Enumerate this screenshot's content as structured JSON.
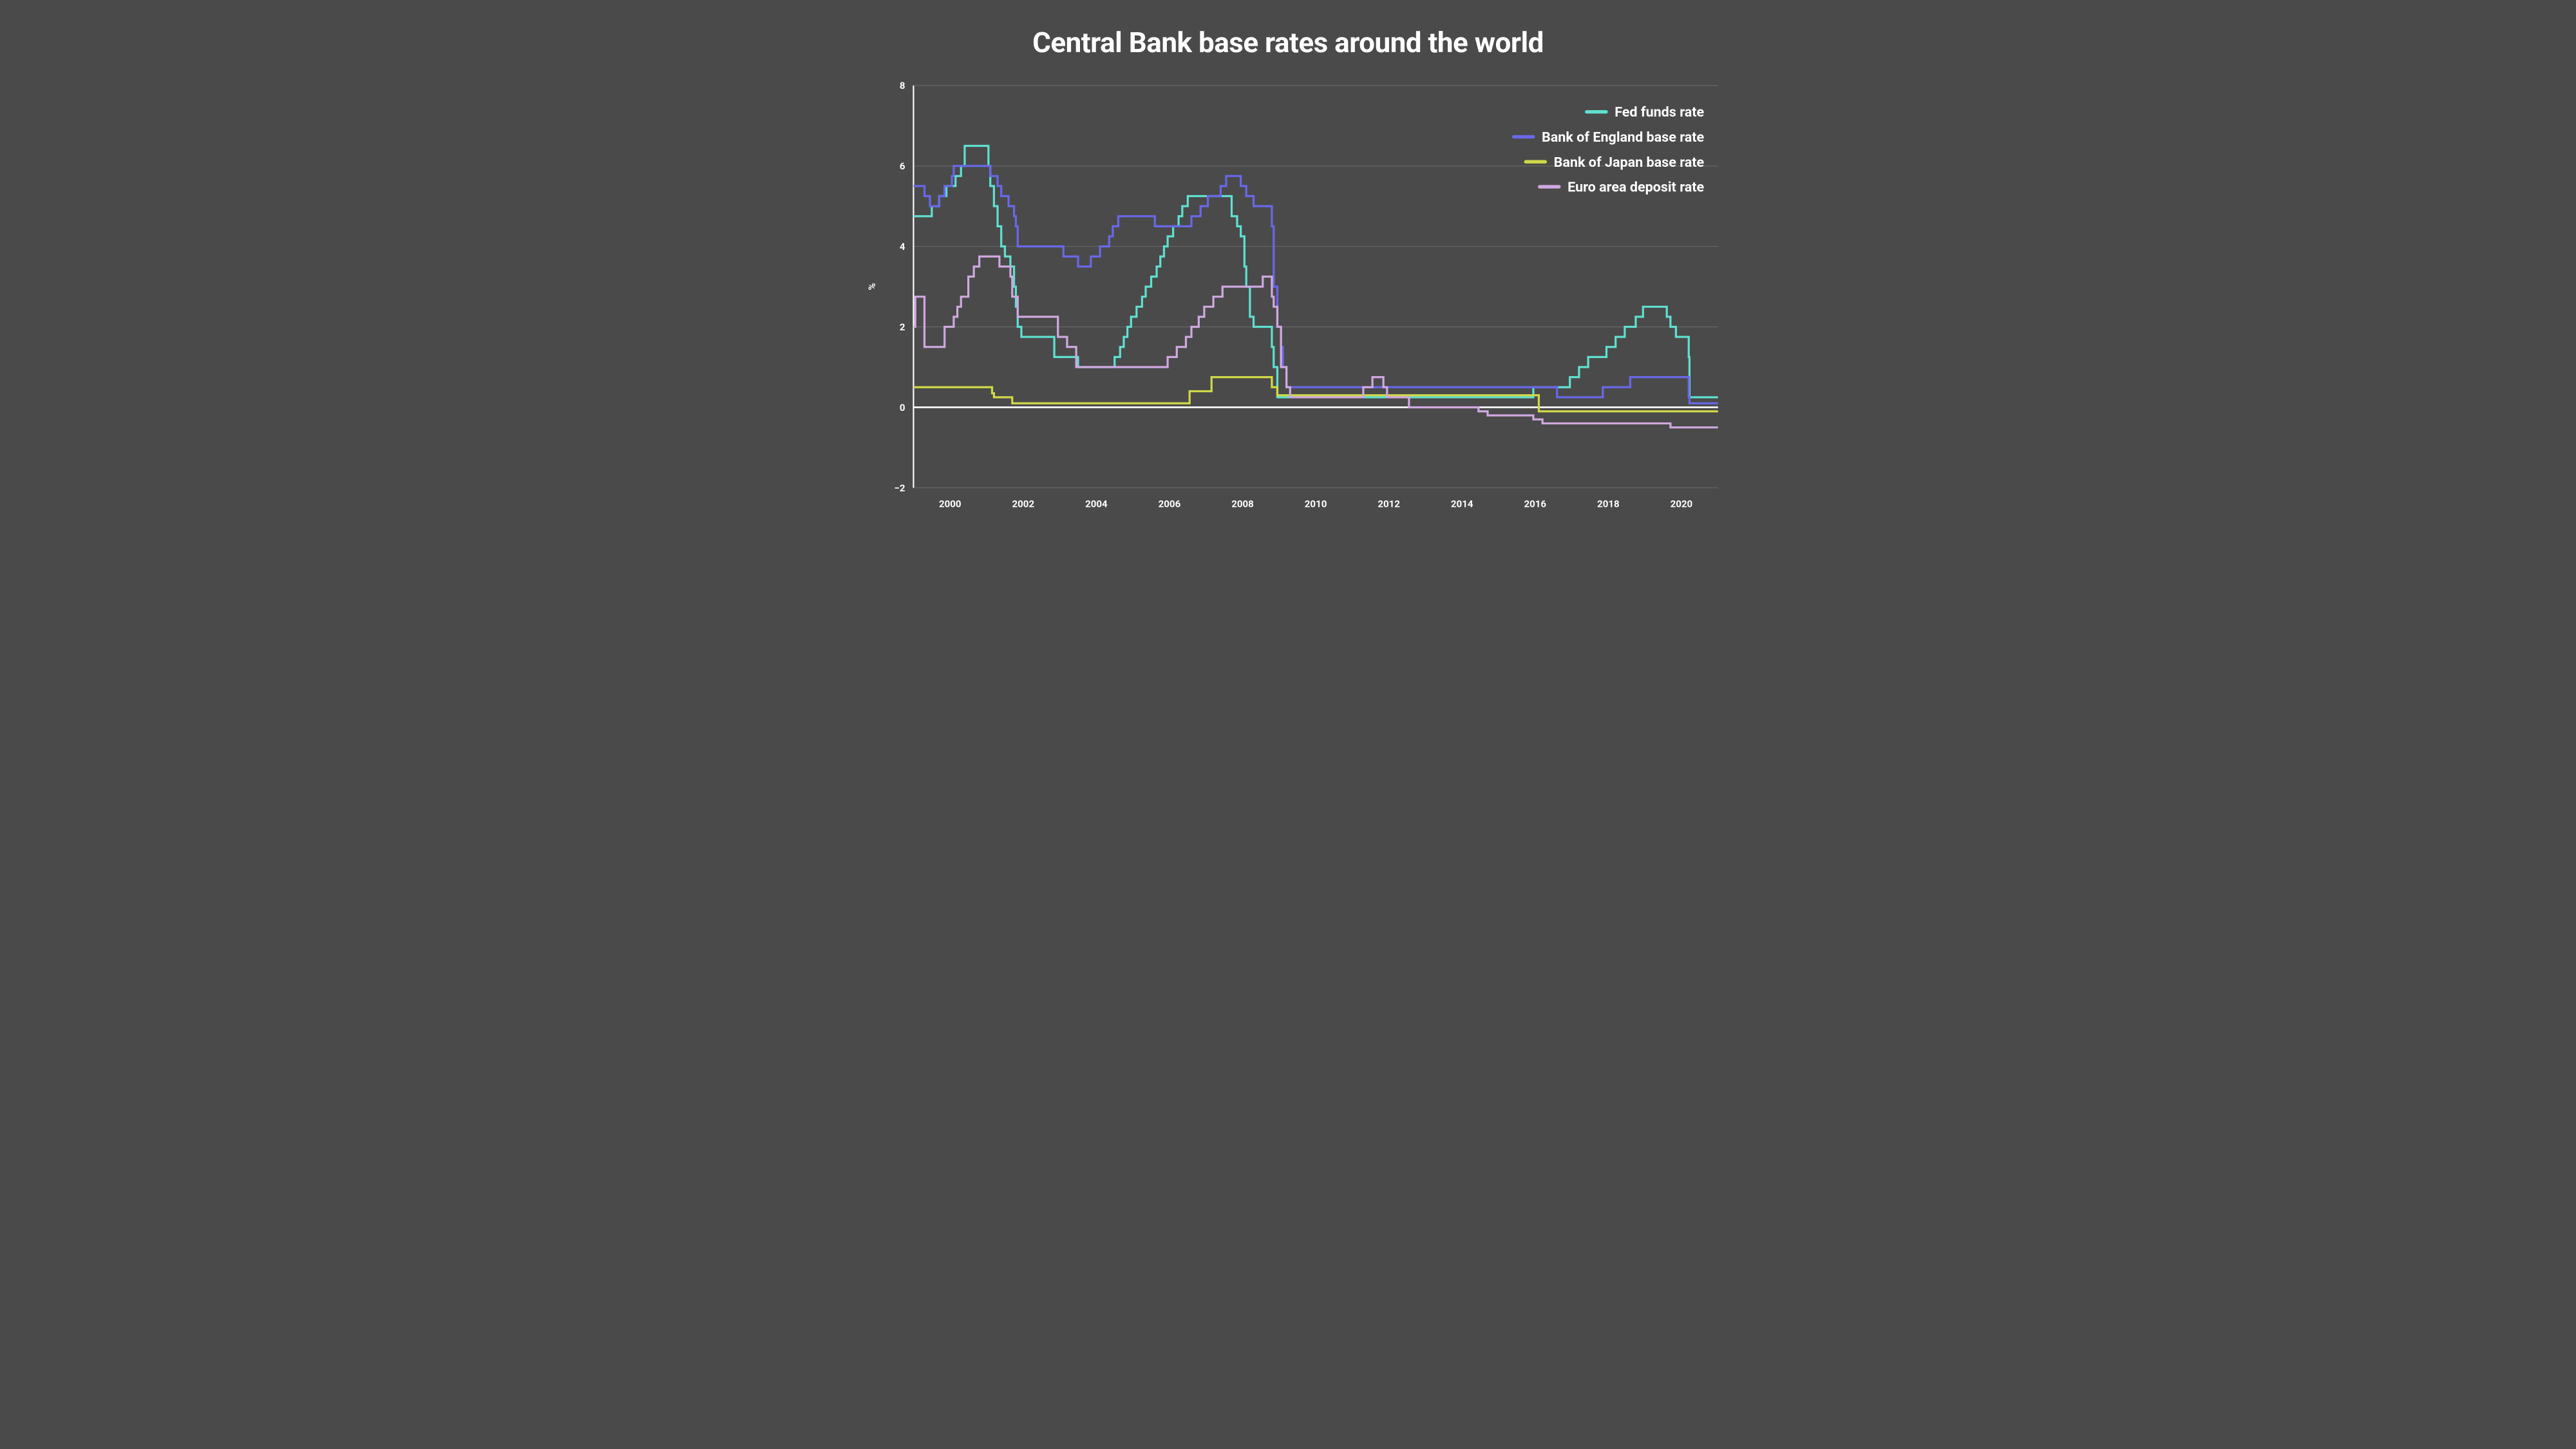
{
  "chart": {
    "type": "line-step",
    "title": "Central Bank base rates around the world",
    "background_color": "#4a4a4a",
    "grid_color": "#6a6a6a",
    "zero_line_color": "#ffffff",
    "axis_line_color": "#ffffff",
    "text_color": "#ffffff",
    "title_fontsize": 44,
    "tick_fontsize": 14,
    "legend_fontsize": 20,
    "line_width": 3,
    "y_label": "%",
    "x_range": [
      1999,
      2021
    ],
    "y_range": [
      -2,
      8
    ],
    "y_ticks": [
      -2,
      0,
      2,
      4,
      6,
      8
    ],
    "x_ticks": [
      2000,
      2002,
      2004,
      2006,
      2008,
      2010,
      2012,
      2014,
      2016,
      2018,
      2020
    ],
    "legend_position": "top-right",
    "series": [
      {
        "name": "Fed funds rate",
        "color": "#5fe0d0",
        "data": [
          [
            1999.0,
            4.75
          ],
          [
            1999.5,
            5.0
          ],
          [
            1999.7,
            5.25
          ],
          [
            1999.9,
            5.5
          ],
          [
            2000.15,
            5.75
          ],
          [
            2000.3,
            6.0
          ],
          [
            2000.4,
            6.5
          ],
          [
            2001.0,
            6.5
          ],
          [
            2001.05,
            6.0
          ],
          [
            2001.1,
            5.5
          ],
          [
            2001.2,
            5.0
          ],
          [
            2001.3,
            4.5
          ],
          [
            2001.4,
            4.0
          ],
          [
            2001.5,
            3.75
          ],
          [
            2001.65,
            3.5
          ],
          [
            2001.75,
            3.0
          ],
          [
            2001.8,
            2.5
          ],
          [
            2001.85,
            2.0
          ],
          [
            2001.95,
            1.75
          ],
          [
            2002.85,
            1.25
          ],
          [
            2003.5,
            1.0
          ],
          [
            2004.5,
            1.25
          ],
          [
            2004.65,
            1.5
          ],
          [
            2004.75,
            1.75
          ],
          [
            2004.85,
            2.0
          ],
          [
            2004.95,
            2.25
          ],
          [
            2005.1,
            2.5
          ],
          [
            2005.25,
            2.75
          ],
          [
            2005.35,
            3.0
          ],
          [
            2005.5,
            3.25
          ],
          [
            2005.65,
            3.5
          ],
          [
            2005.75,
            3.75
          ],
          [
            2005.85,
            4.0
          ],
          [
            2005.95,
            4.25
          ],
          [
            2006.1,
            4.5
          ],
          [
            2006.25,
            4.75
          ],
          [
            2006.35,
            5.0
          ],
          [
            2006.5,
            5.25
          ],
          [
            2007.7,
            4.75
          ],
          [
            2007.85,
            4.5
          ],
          [
            2007.95,
            4.25
          ],
          [
            2008.05,
            3.5
          ],
          [
            2008.1,
            3.0
          ],
          [
            2008.2,
            2.25
          ],
          [
            2008.3,
            2.0
          ],
          [
            2008.8,
            1.5
          ],
          [
            2008.85,
            1.0
          ],
          [
            2008.95,
            0.25
          ],
          [
            2015.95,
            0.5
          ],
          [
            2016.95,
            0.75
          ],
          [
            2017.2,
            1.0
          ],
          [
            2017.45,
            1.25
          ],
          [
            2017.95,
            1.5
          ],
          [
            2018.2,
            1.75
          ],
          [
            2018.45,
            2.0
          ],
          [
            2018.75,
            2.25
          ],
          [
            2018.95,
            2.5
          ],
          [
            2019.6,
            2.25
          ],
          [
            2019.7,
            2.0
          ],
          [
            2019.85,
            1.75
          ],
          [
            2020.2,
            1.25
          ],
          [
            2020.22,
            0.25
          ],
          [
            2021.0,
            0.25
          ]
        ]
      },
      {
        "name": "Bank of England base rate",
        "color": "#6968e8",
        "data": [
          [
            1999.0,
            5.5
          ],
          [
            1999.1,
            5.5
          ],
          [
            1999.3,
            5.25
          ],
          [
            1999.45,
            5.0
          ],
          [
            1999.7,
            5.25
          ],
          [
            1999.85,
            5.5
          ],
          [
            2000.05,
            5.75
          ],
          [
            2000.1,
            6.0
          ],
          [
            2001.1,
            5.75
          ],
          [
            2001.3,
            5.5
          ],
          [
            2001.4,
            5.25
          ],
          [
            2001.6,
            5.0
          ],
          [
            2001.75,
            4.75
          ],
          [
            2001.8,
            4.5
          ],
          [
            2001.85,
            4.0
          ],
          [
            2003.1,
            3.75
          ],
          [
            2003.5,
            3.5
          ],
          [
            2003.85,
            3.75
          ],
          [
            2004.1,
            4.0
          ],
          [
            2004.35,
            4.25
          ],
          [
            2004.45,
            4.5
          ],
          [
            2004.6,
            4.75
          ],
          [
            2005.6,
            4.5
          ],
          [
            2006.6,
            4.75
          ],
          [
            2006.85,
            5.0
          ],
          [
            2007.05,
            5.25
          ],
          [
            2007.4,
            5.5
          ],
          [
            2007.55,
            5.75
          ],
          [
            2007.95,
            5.5
          ],
          [
            2008.1,
            5.25
          ],
          [
            2008.3,
            5.0
          ],
          [
            2008.8,
            4.5
          ],
          [
            2008.85,
            3.0
          ],
          [
            2008.95,
            2.0
          ],
          [
            2009.05,
            1.5
          ],
          [
            2009.1,
            1.0
          ],
          [
            2009.2,
            0.5
          ],
          [
            2016.6,
            0.25
          ],
          [
            2017.85,
            0.5
          ],
          [
            2018.6,
            0.75
          ],
          [
            2020.2,
            0.25
          ],
          [
            2020.22,
            0.1
          ],
          [
            2021.0,
            0.1
          ]
        ]
      },
      {
        "name": "Bank of Japan base rate",
        "color": "#d0d848",
        "data": [
          [
            1999.0,
            0.5
          ],
          [
            2001.15,
            0.35
          ],
          [
            2001.2,
            0.25
          ],
          [
            2001.7,
            0.1
          ],
          [
            2006.55,
            0.4
          ],
          [
            2007.15,
            0.75
          ],
          [
            2008.8,
            0.5
          ],
          [
            2008.95,
            0.3
          ],
          [
            2010.8,
            0.3
          ],
          [
            2016.1,
            -0.1
          ],
          [
            2021.0,
            -0.1
          ]
        ]
      },
      {
        "name": "Euro area deposit rate",
        "color": "#d0a8e0",
        "data": [
          [
            1999.0,
            2.0
          ],
          [
            1999.05,
            2.75
          ],
          [
            1999.3,
            1.5
          ],
          [
            1999.85,
            2.0
          ],
          [
            2000.1,
            2.25
          ],
          [
            2000.2,
            2.5
          ],
          [
            2000.3,
            2.75
          ],
          [
            2000.5,
            3.25
          ],
          [
            2000.65,
            3.5
          ],
          [
            2000.8,
            3.75
          ],
          [
            2001.35,
            3.5
          ],
          [
            2001.65,
            3.25
          ],
          [
            2001.7,
            2.75
          ],
          [
            2001.85,
            2.25
          ],
          [
            2002.95,
            1.75
          ],
          [
            2003.2,
            1.5
          ],
          [
            2003.45,
            1.0
          ],
          [
            2005.95,
            1.25
          ],
          [
            2006.2,
            1.5
          ],
          [
            2006.45,
            1.75
          ],
          [
            2006.6,
            2.0
          ],
          [
            2006.8,
            2.25
          ],
          [
            2006.95,
            2.5
          ],
          [
            2007.2,
            2.75
          ],
          [
            2007.45,
            3.0
          ],
          [
            2008.55,
            3.25
          ],
          [
            2008.8,
            2.75
          ],
          [
            2008.85,
            2.5
          ],
          [
            2008.95,
            2.0
          ],
          [
            2009.05,
            1.0
          ],
          [
            2009.2,
            0.5
          ],
          [
            2009.3,
            0.25
          ],
          [
            2011.3,
            0.5
          ],
          [
            2011.55,
            0.75
          ],
          [
            2011.85,
            0.5
          ],
          [
            2011.95,
            0.25
          ],
          [
            2012.55,
            0.0
          ],
          [
            2014.45,
            -0.1
          ],
          [
            2014.7,
            -0.2
          ],
          [
            2015.95,
            -0.3
          ],
          [
            2016.2,
            -0.4
          ],
          [
            2019.7,
            -0.5
          ],
          [
            2021.0,
            -0.5
          ]
        ]
      }
    ]
  }
}
